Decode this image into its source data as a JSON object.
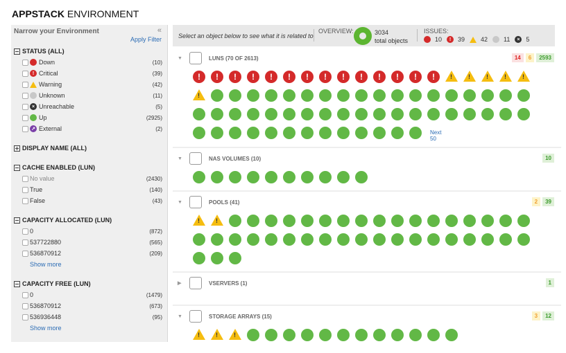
{
  "title": {
    "bold": "APPSTACK",
    "rest": " ENVIRONMENT"
  },
  "sidebar": {
    "heading": "Narrow your Environment",
    "collapse": "«",
    "apply": "Apply Filter",
    "groups": [
      {
        "label": "STATUS (ALL)",
        "expanded": true,
        "options": [
          {
            "label": "Down",
            "count": "(10)",
            "icon": "down",
            "color": "#d42a2a"
          },
          {
            "label": "Critical",
            "count": "(39)",
            "icon": "critical",
            "color": "#d42a2a"
          },
          {
            "label": "Warning",
            "count": "(42)",
            "icon": "warning",
            "color": "#f5bd10"
          },
          {
            "label": "Unknown",
            "count": "(11)",
            "icon": "unknown",
            "color": "#c8c8c8"
          },
          {
            "label": "Unreachable",
            "count": "(5)",
            "icon": "unreachable",
            "color": "#333333"
          },
          {
            "label": "Up",
            "count": "(2925)",
            "icon": "up",
            "color": "#62b846"
          },
          {
            "label": "External",
            "count": "(2)",
            "icon": "external",
            "color": "#7a3fa8"
          }
        ]
      },
      {
        "label": "DISPLAY NAME (ALL)",
        "expanded": false,
        "options": []
      },
      {
        "label": "CACHE ENABLED (LUN)",
        "expanded": true,
        "options": [
          {
            "label": "No value",
            "count": "(2430)"
          },
          {
            "label": "True",
            "count": "(140)"
          },
          {
            "label": "False",
            "count": "(43)"
          }
        ]
      },
      {
        "label": "CAPACITY ALLOCATED (LUN)",
        "expanded": true,
        "options": [
          {
            "label": "0",
            "count": "(872)"
          },
          {
            "label": "537722880",
            "count": "(565)"
          },
          {
            "label": "536870912",
            "count": "(209)"
          }
        ],
        "more": "Show more"
      },
      {
        "label": "CAPACITY FREE (LUN)",
        "expanded": true,
        "options": [
          {
            "label": "0",
            "count": "(1479)"
          },
          {
            "label": "536870912",
            "count": "(673)"
          },
          {
            "label": "536936448",
            "count": "(95)"
          }
        ],
        "more": "Show more"
      }
    ]
  },
  "overview_bar": {
    "hint": "Select an object below to see what it is related to",
    "overview_label": "OVERVIEW:",
    "total": "3034",
    "total_label": "total objects",
    "issues_label": "ISSUES:",
    "issues": [
      {
        "icon": "down",
        "count": "10"
      },
      {
        "icon": "critical",
        "count": "39"
      },
      {
        "icon": "warning",
        "count": "42"
      },
      {
        "icon": "unknown",
        "count": "11"
      },
      {
        "icon": "unreachable",
        "count": "5"
      }
    ]
  },
  "sections": [
    {
      "name": "LUNS (70 OF 2613)",
      "icon": "lun",
      "expanded": true,
      "badges": [
        {
          "type": "r",
          "value": "14"
        },
        {
          "type": "y",
          "value": "6"
        },
        {
          "type": "g",
          "value": "2593"
        }
      ],
      "items": {
        "critical": 14,
        "warning": 6,
        "up": 50
      },
      "next": "Next 50"
    },
    {
      "name": "NAS VOLUMES (10)",
      "icon": "nas-volume",
      "expanded": true,
      "badges": [
        {
          "type": "g",
          "value": "10"
        }
      ],
      "items": {
        "critical": 0,
        "warning": 0,
        "up": 10
      }
    },
    {
      "name": "POOLS (41)",
      "icon": "pool",
      "expanded": true,
      "badges": [
        {
          "type": "y",
          "value": "2"
        },
        {
          "type": "g",
          "value": "39"
        }
      ],
      "items": {
        "critical": 0,
        "warning": 2,
        "up": 39
      }
    },
    {
      "name": "VSERVERS (1)",
      "icon": "vserver",
      "expanded": false,
      "badges": [
        {
          "type": "g",
          "value": "1"
        }
      ],
      "items": {
        "critical": 0,
        "warning": 0,
        "up": 0
      }
    },
    {
      "name": "STORAGE ARRAYS (15)",
      "icon": "storage-array",
      "expanded": true,
      "badges": [
        {
          "type": "y",
          "value": "3"
        },
        {
          "type": "g",
          "value": "12"
        }
      ],
      "items": {
        "critical": 0,
        "warning": 3,
        "up": 12
      }
    }
  ]
}
